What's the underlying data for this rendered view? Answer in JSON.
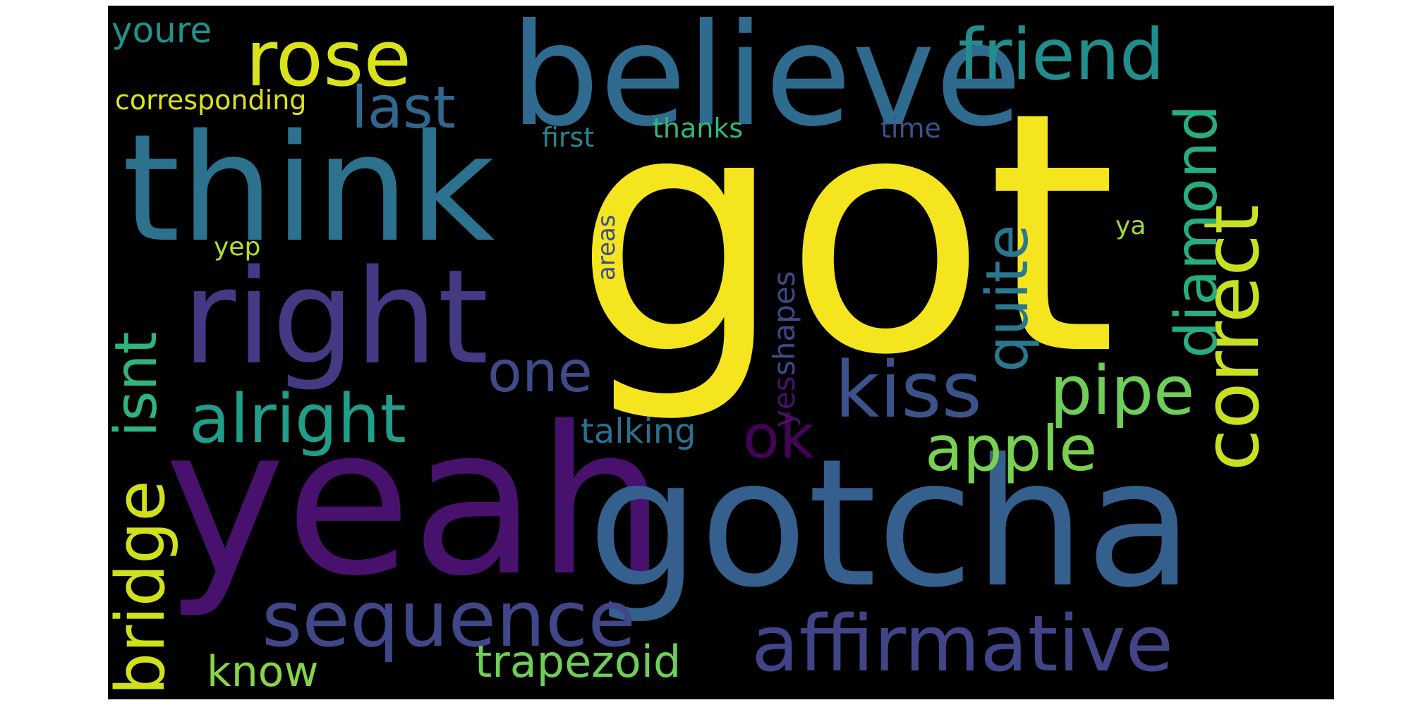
{
  "background_color": "#000000",
  "page_color": "#ffffff",
  "words": [
    {
      "text": "got",
      "color": "#f5e51f"
    },
    {
      "text": "yeah",
      "color": "#48116d"
    },
    {
      "text": "gotcha",
      "color": "#355f8d"
    },
    {
      "text": "think",
      "color": "#2c728e"
    },
    {
      "text": "believe",
      "color": "#2f6b8e"
    },
    {
      "text": "right",
      "color": "#433a83"
    },
    {
      "text": "rose",
      "color": "#dae319"
    },
    {
      "text": "friend",
      "color": "#218e8d"
    },
    {
      "text": "affirmative",
      "color": "#414487"
    },
    {
      "text": "sequence",
      "color": "#3f4788"
    },
    {
      "text": "kiss",
      "color": "#3b528b"
    },
    {
      "text": "alright",
      "color": "#1f9e89"
    },
    {
      "text": "correct",
      "color": "#c8e020"
    },
    {
      "text": "pipe",
      "color": "#6ece58"
    },
    {
      "text": "apple",
      "color": "#7ad151"
    },
    {
      "text": "diamond",
      "color": "#26ad81"
    },
    {
      "text": "quite",
      "color": "#2a788e"
    },
    {
      "text": "bridge",
      "color": "#d0e11c"
    },
    {
      "text": "isnt",
      "color": "#2fb47c"
    },
    {
      "text": "last",
      "color": "#31678e"
    },
    {
      "text": "one",
      "color": "#3e4a89"
    },
    {
      "text": "ok",
      "color": "#440256"
    },
    {
      "text": "trapezoid",
      "color": "#6ece58"
    },
    {
      "text": "know",
      "color": "#86d549"
    },
    {
      "text": "talking",
      "color": "#2d708e"
    },
    {
      "text": "shapes",
      "color": "#3e4989"
    },
    {
      "text": "yes",
      "color": "#471365"
    },
    {
      "text": "youre",
      "color": "#20928c"
    },
    {
      "text": "corresponding",
      "color": "#dde318"
    },
    {
      "text": "first",
      "color": "#25848e"
    },
    {
      "text": "thanks",
      "color": "#35b779"
    },
    {
      "text": "time",
      "color": "#3b528b"
    },
    {
      "text": "areas",
      "color": "#3e4c8a"
    },
    {
      "text": "yep",
      "color": "#b5de2b"
    },
    {
      "text": "ya",
      "color": "#a0da39"
    }
  ]
}
